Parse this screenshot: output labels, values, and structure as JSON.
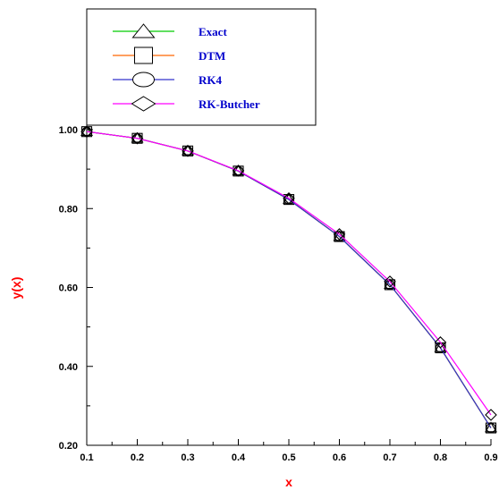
{
  "chart_data": {
    "type": "line",
    "title": "",
    "xlabel": "x",
    "ylabel": "y(x)",
    "xlim": [
      0.1,
      0.9
    ],
    "ylim": [
      0.2,
      1.0
    ],
    "x_ticks": [
      "0.1",
      "0.2",
      "0.3",
      "0.4",
      "0.5",
      "0.6",
      "0.7",
      "0.8",
      "0.9"
    ],
    "y_ticks": [
      "0.20",
      "0.40",
      "0.60",
      "0.80",
      "1.00"
    ],
    "grid": false,
    "legend_position": "top-left",
    "x": [
      0.1,
      0.2,
      0.3,
      0.4,
      0.5,
      0.6,
      0.7,
      0.8,
      0.9
    ],
    "series": [
      {
        "name": "Exact",
        "color": "#00cc00",
        "marker": "triangle",
        "values": [
          0.995,
          0.978,
          0.946,
          0.895,
          0.823,
          0.729,
          0.607,
          0.447,
          0.244
        ]
      },
      {
        "name": "DTM",
        "color": "#ff6600",
        "marker": "square",
        "values": [
          0.995,
          0.978,
          0.946,
          0.895,
          0.823,
          0.729,
          0.607,
          0.447,
          0.244
        ]
      },
      {
        "name": "RK4",
        "color": "#3333cc",
        "marker": "circle",
        "values": [
          0.995,
          0.978,
          0.946,
          0.895,
          0.823,
          0.729,
          0.607,
          0.447,
          0.244
        ]
      },
      {
        "name": "RK-Butcher",
        "color": "#ff00ff",
        "marker": "diamond",
        "values": [
          0.995,
          0.978,
          0.946,
          0.896,
          0.826,
          0.735,
          0.615,
          0.461,
          0.277
        ]
      }
    ],
    "axis_title_color": "#ff0000",
    "legend_text_color": "#0000cc"
  }
}
